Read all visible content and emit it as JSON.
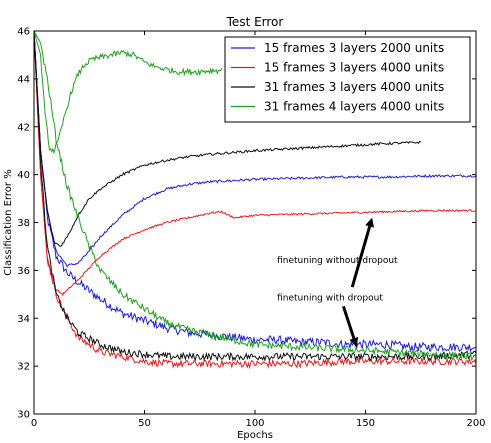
{
  "chart_data": {
    "type": "line",
    "title": "Test Error",
    "xlabel": "Epochs",
    "ylabel": "Classification Error %",
    "xlim": [
      0,
      200
    ],
    "ylim": [
      30,
      46
    ],
    "xticks": [
      0,
      50,
      100,
      150,
      200
    ],
    "yticks": [
      30,
      32,
      34,
      36,
      38,
      40,
      42,
      44,
      46
    ],
    "legend_position": "top-right",
    "series": [
      {
        "name": "15 frames 3 layers 2000 units",
        "color": "#1f1fd0",
        "style": "converging",
        "x": [
          0,
          3,
          6,
          10,
          15,
          20,
          30,
          40,
          50,
          60,
          70,
          80,
          90,
          100,
          110,
          120,
          130,
          140,
          150,
          160,
          170,
          180,
          190,
          200
        ],
        "y": [
          46,
          41,
          38.2,
          36.6,
          35.9,
          35.5,
          34.8,
          34.2,
          33.9,
          33.6,
          33.4,
          33.3,
          33.2,
          33.1,
          33.1,
          33.0,
          33.0,
          32.9,
          32.9,
          32.9,
          32.8,
          32.8,
          32.8,
          32.8
        ],
        "noise": 0.18
      },
      {
        "name": "15 frames 3 layers 2000 units",
        "color": "#1f1fd0",
        "style": "diverging",
        "x": [
          0,
          3,
          6,
          10,
          15,
          20,
          25,
          30,
          40,
          50,
          60,
          70,
          80,
          90,
          100,
          120,
          140,
          160,
          180,
          200
        ],
        "y": [
          46,
          41,
          38.5,
          36.8,
          36.2,
          36.3,
          36.8,
          37.4,
          38.3,
          39.0,
          39.4,
          39.6,
          39.7,
          39.75,
          39.8,
          39.85,
          39.9,
          39.9,
          39.95,
          39.95
        ],
        "noise": 0.05
      },
      {
        "name": "15 frames 3 layers 4000 units",
        "color": "#e02020",
        "style": "converging",
        "x": [
          0,
          3,
          6,
          10,
          15,
          20,
          30,
          40,
          50,
          60,
          80,
          100,
          120,
          140,
          160,
          180,
          200
        ],
        "y": [
          46,
          40,
          36.5,
          35.0,
          34.0,
          33.2,
          32.6,
          32.4,
          32.2,
          32.1,
          32.1,
          32.1,
          32.1,
          32.2,
          32.2,
          32.2,
          32.2
        ],
        "noise": 0.15
      },
      {
        "name": "15 frames 3 layers 4000 units",
        "color": "#e02020",
        "style": "diverging",
        "x": [
          0,
          3,
          6,
          10,
          13,
          20,
          30,
          40,
          50,
          60,
          70,
          80,
          85,
          88,
          91,
          100,
          120,
          140,
          160,
          180,
          200
        ],
        "y": [
          46,
          40,
          36.5,
          35.2,
          35.0,
          35.6,
          36.6,
          37.3,
          37.7,
          38.0,
          38.2,
          38.4,
          38.45,
          38.3,
          38.2,
          38.3,
          38.35,
          38.4,
          38.45,
          38.5,
          38.5
        ],
        "noise": 0.04
      },
      {
        "name": "31 frames 3 layers 4000 units",
        "color": "#111111",
        "style": "converging",
        "x": [
          0,
          3,
          6,
          10,
          15,
          20,
          30,
          40,
          50,
          60,
          80,
          100,
          120,
          140,
          160,
          180,
          200
        ],
        "y": [
          46,
          40.5,
          37.0,
          35.0,
          34.0,
          33.4,
          32.9,
          32.6,
          32.5,
          32.4,
          32.4,
          32.4,
          32.4,
          32.4,
          32.4,
          32.4,
          32.5
        ],
        "noise": 0.15
      },
      {
        "name": "31 frames 3 layers 4000 units",
        "color": "#111111",
        "style": "diverging",
        "x": [
          0,
          3,
          6,
          9,
          12,
          15,
          20,
          25,
          30,
          40,
          50,
          60,
          70,
          80,
          100,
          120,
          140,
          160,
          175
        ],
        "y": [
          46,
          41,
          38.5,
          37.2,
          37.0,
          37.4,
          38.3,
          39.0,
          39.4,
          40.0,
          40.4,
          40.6,
          40.75,
          40.85,
          41.0,
          41.1,
          41.2,
          41.3,
          41.35
        ],
        "noise": 0.05
      },
      {
        "name": "31 frames 4 layers 4000 units",
        "color": "#20a020",
        "style": "converging",
        "x": [
          0,
          3,
          6,
          10,
          15,
          20,
          25,
          30,
          40,
          50,
          60,
          70,
          80,
          90,
          100,
          120,
          140,
          160,
          180,
          200
        ],
        "y": [
          46,
          45.5,
          44.0,
          41.5,
          39.5,
          38.2,
          37.0,
          36.0,
          35.0,
          34.4,
          33.8,
          33.5,
          33.3,
          33.1,
          32.9,
          32.8,
          32.7,
          32.6,
          32.5,
          32.4
        ],
        "noise": 0.15
      },
      {
        "name": "31 frames 4 layers 4000 units",
        "color": "#20a020",
        "style": "diverging",
        "x": [
          0,
          3,
          5,
          7,
          9,
          11,
          14,
          17,
          20,
          23,
          26,
          30,
          35,
          40,
          45,
          50,
          55,
          60,
          65,
          70,
          75,
          80,
          85
        ],
        "y": [
          46,
          45,
          42.5,
          41.1,
          41.0,
          41.4,
          42.5,
          43.5,
          44.2,
          44.6,
          44.8,
          44.9,
          45.0,
          45.1,
          45.0,
          44.7,
          44.5,
          44.4,
          44.3,
          44.3,
          44.3,
          44.35,
          44.35
        ],
        "noise": 0.12
      }
    ],
    "annotations": [
      {
        "text": "finetuning without dropout",
        "x": 110,
        "y": 36.3,
        "arrow_from": [
          144,
          35.3
        ],
        "arrow_to": [
          153,
          38.2
        ]
      },
      {
        "text": "finetuning with dropout",
        "x": 110,
        "y": 34.75,
        "arrow_from": [
          140,
          34.5
        ],
        "arrow_to": [
          146,
          32.8
        ]
      }
    ]
  }
}
